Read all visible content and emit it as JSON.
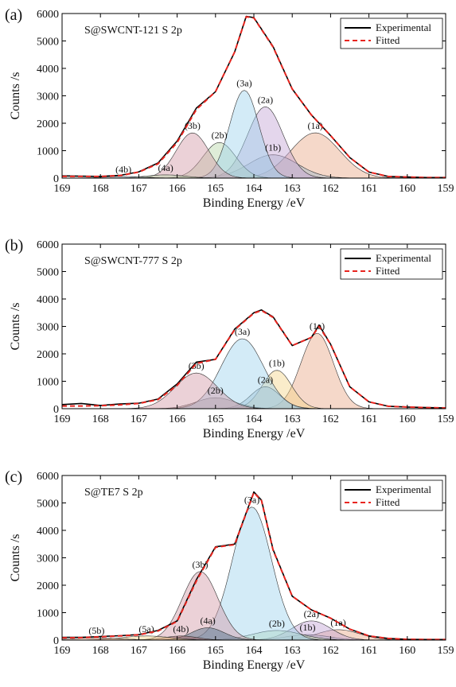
{
  "chart_data": [
    {
      "panel": "(a)",
      "type": "line",
      "title": "S@SWCNT-121 S 2p",
      "xlabel": "Binding Energy /eV",
      "ylabel": "Counts /s",
      "xlim": [
        169,
        159
      ],
      "x_reversed": true,
      "ylim": [
        0,
        6000
      ],
      "xticks": [
        169,
        168,
        167,
        166,
        165,
        164,
        163,
        162,
        161,
        160,
        159
      ],
      "yticks": [
        0,
        1000,
        2000,
        3000,
        4000,
        5000,
        6000
      ],
      "grid": false,
      "legend": {
        "position": "top-right",
        "entries": [
          "Experimental",
          "Fitted"
        ]
      },
      "series": [
        {
          "name": "Experimental",
          "color": "#000000",
          "style": "solid",
          "x": [
            169,
            168.5,
            168,
            167.5,
            167,
            166.5,
            166,
            165.5,
            165,
            164.5,
            164.2,
            164,
            163.5,
            163,
            162.5,
            162,
            161.5,
            161,
            160.5,
            160,
            159.5,
            159
          ],
          "y": [
            80,
            70,
            60,
            100,
            230,
            550,
            1350,
            2550,
            3150,
            4600,
            5900,
            5850,
            4800,
            3250,
            2300,
            1550,
            750,
            220,
            60,
            40,
            20,
            20
          ]
        },
        {
          "name": "Fitted",
          "color": "#e8251f",
          "style": "dashed",
          "x": [
            169,
            168.5,
            168,
            167.5,
            167,
            166.5,
            166,
            165.5,
            165,
            164.5,
            164.2,
            164,
            163.5,
            163,
            162.5,
            162,
            161.5,
            161,
            160.5,
            160,
            159.5,
            159
          ],
          "y": [
            60,
            60,
            60,
            90,
            220,
            520,
            1300,
            2500,
            3150,
            4600,
            5880,
            5840,
            4780,
            3250,
            2300,
            1550,
            750,
            220,
            60,
            40,
            20,
            20
          ]
        }
      ],
      "components": [
        {
          "label": "(1a)",
          "center": 162.4,
          "height": 1650,
          "fwhm": 1.5,
          "color": "#e8a887"
        },
        {
          "label": "(1b)",
          "center": 163.5,
          "height": 850,
          "fwhm": 1.5,
          "color": "#9fb8c8"
        },
        {
          "label": "(2a)",
          "center": 163.7,
          "height": 2600,
          "fwhm": 1.1,
          "color": "#c4a4d4"
        },
        {
          "label": "(2b)",
          "center": 164.9,
          "height": 1300,
          "fwhm": 1.0,
          "color": "#b7d7a8"
        },
        {
          "label": "(3a)",
          "center": 164.25,
          "height": 3200,
          "fwhm": 0.9,
          "color": "#9ed3ee"
        },
        {
          "label": "(3b)",
          "center": 165.6,
          "height": 1650,
          "fwhm": 1.0,
          "color": "#d29aa6"
        },
        {
          "label": "(4a)",
          "center": 166.3,
          "height": 120,
          "fwhm": 1.2,
          "color": "#b7d7a8"
        },
        {
          "label": "(4b)",
          "center": 167.4,
          "height": 60,
          "fwhm": 1.2,
          "color": "#9fb8c8"
        }
      ]
    },
    {
      "panel": "(b)",
      "type": "line",
      "title": "S@SWCNT-777 S 2p",
      "xlabel": "Binding Energy /eV",
      "ylabel": "Counts /s",
      "xlim": [
        169,
        159
      ],
      "x_reversed": true,
      "ylim": [
        0,
        6000
      ],
      "xticks": [
        169,
        168,
        167,
        166,
        165,
        164,
        163,
        162,
        161,
        160,
        159
      ],
      "yticks": [
        0,
        1000,
        2000,
        3000,
        4000,
        5000,
        6000
      ],
      "grid": false,
      "legend": {
        "position": "top-right",
        "entries": [
          "Experimental",
          "Fitted"
        ]
      },
      "series": [
        {
          "name": "Experimental",
          "color": "#000000",
          "style": "solid",
          "x": [
            169,
            168.5,
            168,
            167.5,
            167,
            166.5,
            166,
            165.5,
            165,
            164.5,
            164,
            163.8,
            163.5,
            163,
            162.5,
            162.3,
            162,
            161.5,
            161,
            160.5,
            160,
            159.5,
            159
          ],
          "y": [
            150,
            190,
            120,
            170,
            200,
            350,
            900,
            1700,
            1800,
            2900,
            3500,
            3600,
            3350,
            2300,
            2600,
            3050,
            2350,
            800,
            250,
            90,
            60,
            40,
            30
          ]
        },
        {
          "name": "Fitted",
          "color": "#e8251f",
          "style": "dashed",
          "x": [
            169,
            168.5,
            168,
            167.5,
            167,
            166.5,
            166,
            165.5,
            165,
            164.5,
            164,
            163.8,
            163.5,
            163,
            162.5,
            162.3,
            162,
            161.5,
            161,
            160.5,
            160,
            159.5,
            159
          ],
          "y": [
            100,
            100,
            110,
            140,
            190,
            330,
            850,
            1650,
            1800,
            2880,
            3480,
            3580,
            3330,
            2300,
            2600,
            3000,
            2350,
            800,
            250,
            90,
            60,
            40,
            30
          ]
        }
      ],
      "components": [
        {
          "label": "(1a)",
          "center": 162.35,
          "height": 2750,
          "fwhm": 1.0,
          "color": "#e8a887"
        },
        {
          "label": "(1b)",
          "center": 163.4,
          "height": 1400,
          "fwhm": 0.9,
          "color": "#f3d58a"
        },
        {
          "label": "(2a)",
          "center": 163.7,
          "height": 800,
          "fwhm": 0.9,
          "color": "#9fb8c8"
        },
        {
          "label": "(2b)",
          "center": 165.0,
          "height": 400,
          "fwhm": 1.2,
          "color": "#9a8f8f"
        },
        {
          "label": "(3a)",
          "center": 164.3,
          "height": 2550,
          "fwhm": 1.3,
          "color": "#9ed3ee"
        },
        {
          "label": "(3b)",
          "center": 165.5,
          "height": 1300,
          "fwhm": 1.3,
          "color": "#d29aa6"
        }
      ]
    },
    {
      "panel": "(c)",
      "type": "line",
      "title": "S@TE7 S 2p",
      "xlabel": "Binding Energy /eV",
      "ylabel": "Counts /s",
      "xlim": [
        169,
        159
      ],
      "x_reversed": true,
      "ylim": [
        0,
        6000
      ],
      "xticks": [
        169,
        168,
        167,
        166,
        165,
        164,
        163,
        162,
        161,
        160,
        159
      ],
      "yticks": [
        0,
        1000,
        2000,
        3000,
        4000,
        5000,
        6000
      ],
      "grid": false,
      "legend": {
        "position": "top-right",
        "entries": [
          "Experimental",
          "Fitted"
        ]
      },
      "series": [
        {
          "name": "Experimental",
          "color": "#000000",
          "style": "solid",
          "x": [
            169,
            168.5,
            168,
            167.5,
            167,
            166.5,
            166,
            165.5,
            165,
            164.5,
            164,
            163.8,
            163.5,
            163,
            162.5,
            162,
            161.5,
            161,
            160.5,
            160,
            159.5,
            159
          ],
          "y": [
            100,
            100,
            130,
            160,
            200,
            350,
            700,
            2200,
            3400,
            3500,
            5400,
            5100,
            3300,
            1600,
            1100,
            800,
            400,
            150,
            60,
            30,
            20,
            20
          ]
        },
        {
          "name": "Fitted",
          "color": "#e8251f",
          "style": "dashed",
          "x": [
            169,
            168.5,
            168,
            167.5,
            167,
            166.5,
            166,
            165.5,
            165,
            164.5,
            164,
            163.8,
            163.5,
            163,
            162.5,
            162,
            161.5,
            161,
            160.5,
            160,
            159.5,
            159
          ],
          "y": [
            80,
            90,
            120,
            150,
            190,
            330,
            680,
            2150,
            3380,
            3480,
            5380,
            5080,
            3280,
            1600,
            1100,
            800,
            400,
            150,
            60,
            30,
            20,
            20
          ]
        }
      ],
      "components": [
        {
          "label": "(1a)",
          "center": 161.8,
          "height": 380,
          "fwhm": 1.3,
          "color": "#e8a887"
        },
        {
          "label": "(1b)",
          "center": 162.6,
          "height": 200,
          "fwhm": 1.3,
          "color": "#9fb8c8"
        },
        {
          "label": "(2a)",
          "center": 162.5,
          "height": 700,
          "fwhm": 1.2,
          "color": "#c4a4d4"
        },
        {
          "label": "(2b)",
          "center": 163.4,
          "height": 350,
          "fwhm": 1.5,
          "color": "#b7d7a8"
        },
        {
          "label": "(3a)",
          "center": 164.05,
          "height": 4850,
          "fwhm": 1.2,
          "color": "#9ed3ee"
        },
        {
          "label": "(3b)",
          "center": 165.4,
          "height": 2500,
          "fwhm": 1.1,
          "color": "#d29aa6"
        },
        {
          "label": "(4a)",
          "center": 165.2,
          "height": 450,
          "fwhm": 1.0,
          "color": "#4e6c85"
        },
        {
          "label": "(4b)",
          "center": 165.9,
          "height": 150,
          "fwhm": 1.0,
          "color": "#a05a5a"
        },
        {
          "label": "(5a)",
          "center": 166.8,
          "height": 150,
          "fwhm": 1.5,
          "color": "#f3d58a"
        },
        {
          "label": "(5b)",
          "center": 168.1,
          "height": 80,
          "fwhm": 1.5,
          "color": "#e8a887"
        }
      ]
    }
  ]
}
